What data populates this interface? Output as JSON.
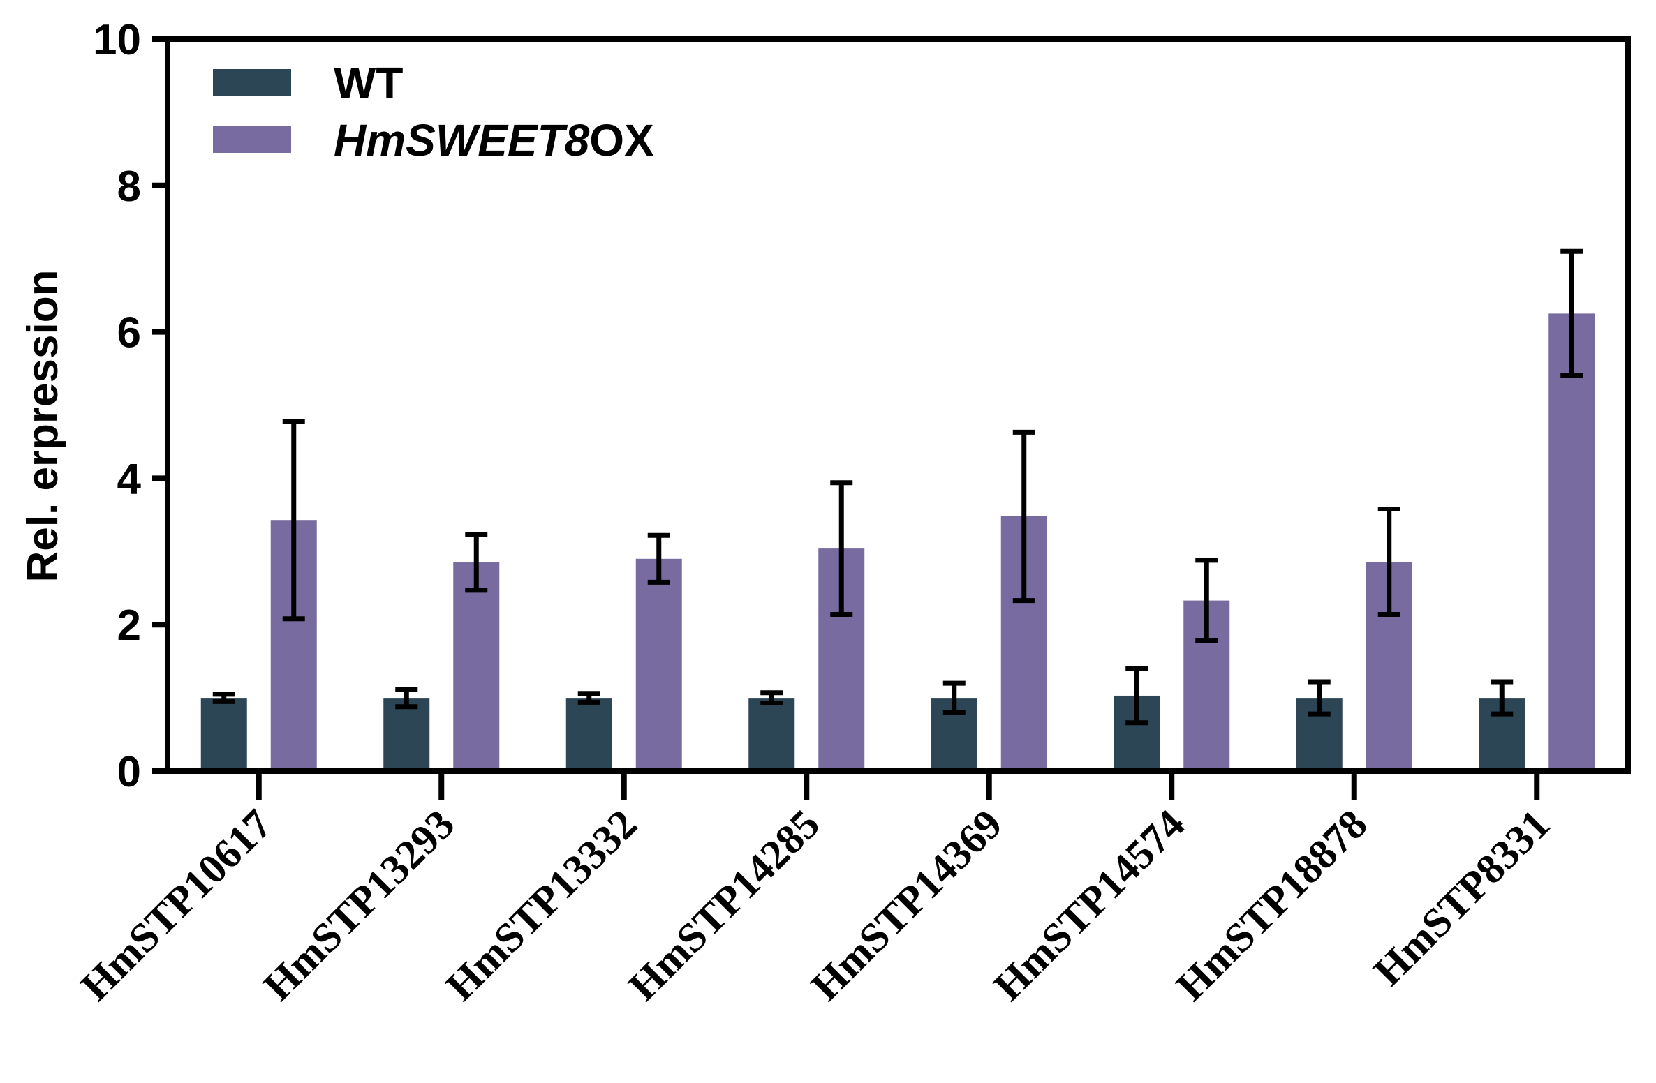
{
  "chart_data": {
    "type": "bar",
    "title": "",
    "xlabel": "",
    "ylabel": "Rel. erpression",
    "ylim": [
      0,
      10
    ],
    "yticks": [
      0,
      2,
      4,
      6,
      8,
      10
    ],
    "ytick_labels": [
      "0",
      "2",
      "4",
      "6",
      "8",
      "10"
    ],
    "grid": false,
    "legend_position": "top-left",
    "categories": [
      "HmSTP10617",
      "HmSTP13293",
      "HmSTP13332",
      "HmSTP14285",
      "HmSTP14369",
      "HmSTP14574",
      "HmSTP18878",
      "HmSTP8331"
    ],
    "series": [
      {
        "name": "WT",
        "legend_parts": [
          {
            "text": "WT",
            "italic": false
          }
        ],
        "color": "#2D4656",
        "values": [
          1.0,
          1.0,
          1.0,
          1.0,
          1.0,
          1.03,
          1.0,
          1.0
        ],
        "errors": [
          0.05,
          0.12,
          0.06,
          0.07,
          0.2,
          0.37,
          0.22,
          0.22
        ]
      },
      {
        "name": "HmSWEET8OX",
        "legend_parts": [
          {
            "text": "HmSWEET8",
            "italic": true
          },
          {
            "text": "OX",
            "italic": false
          }
        ],
        "color": "#776BA0",
        "values": [
          3.43,
          2.85,
          2.9,
          3.04,
          3.48,
          2.33,
          2.86,
          6.25
        ],
        "errors": [
          1.35,
          0.38,
          0.32,
          0.9,
          1.15,
          0.55,
          0.72,
          0.85
        ]
      }
    ]
  }
}
